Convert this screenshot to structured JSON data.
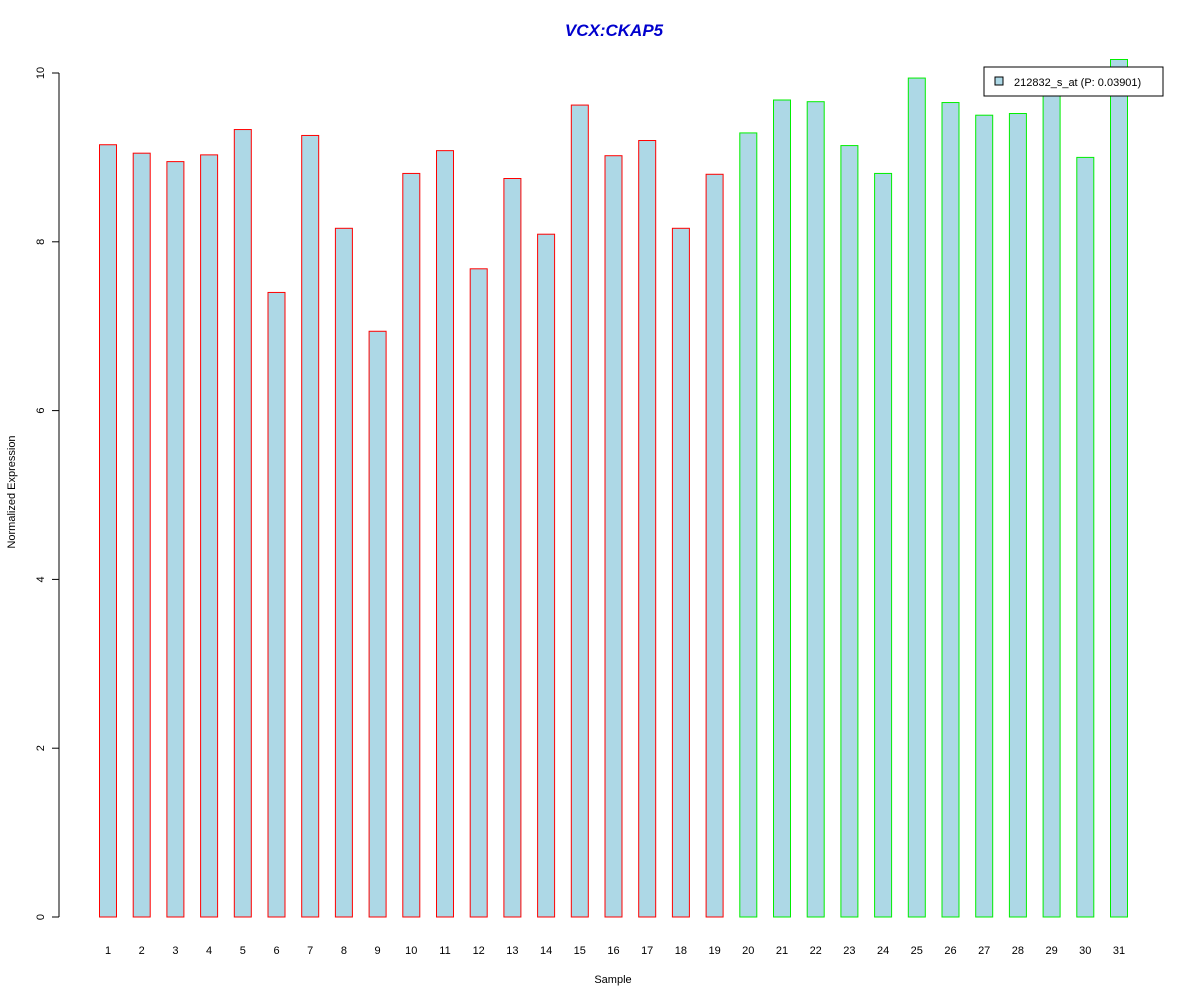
{
  "chart_data": {
    "type": "bar",
    "title": "VCX:CKAP5",
    "xlabel": "Sample",
    "ylabel": "Normalized Expression",
    "ylim": [
      0,
      10
    ],
    "yticks": [
      "0",
      "2",
      "4",
      "6",
      "8",
      "10"
    ],
    "categories": [
      "1",
      "2",
      "3",
      "4",
      "5",
      "6",
      "7",
      "8",
      "9",
      "10",
      "11",
      "12",
      "13",
      "14",
      "15",
      "16",
      "17",
      "18",
      "19",
      "20",
      "21",
      "22",
      "23",
      "24",
      "25",
      "26",
      "27",
      "28",
      "29",
      "30",
      "31"
    ],
    "series": [
      {
        "name": "212832_s_at (P: 0.03901)",
        "values": [
          9.15,
          9.05,
          8.95,
          9.03,
          9.33,
          7.4,
          9.26,
          8.16,
          6.94,
          8.81,
          9.08,
          7.68,
          8.75,
          8.09,
          9.62,
          9.02,
          9.2,
          8.16,
          8.8,
          9.29,
          9.68,
          9.66,
          9.14,
          8.81,
          9.94,
          9.65,
          9.5,
          9.52,
          9.8,
          9.0,
          10.16
        ]
      }
    ],
    "groups": [
      {
        "range": [
          1,
          19
        ],
        "border_color": "#ff0000"
      },
      {
        "range": [
          20,
          31
        ],
        "border_color": "#00ee00"
      }
    ],
    "bar_fill": "#add8e6",
    "title_color": "#0000cd",
    "legend_position": "top-right",
    "grid": false
  }
}
